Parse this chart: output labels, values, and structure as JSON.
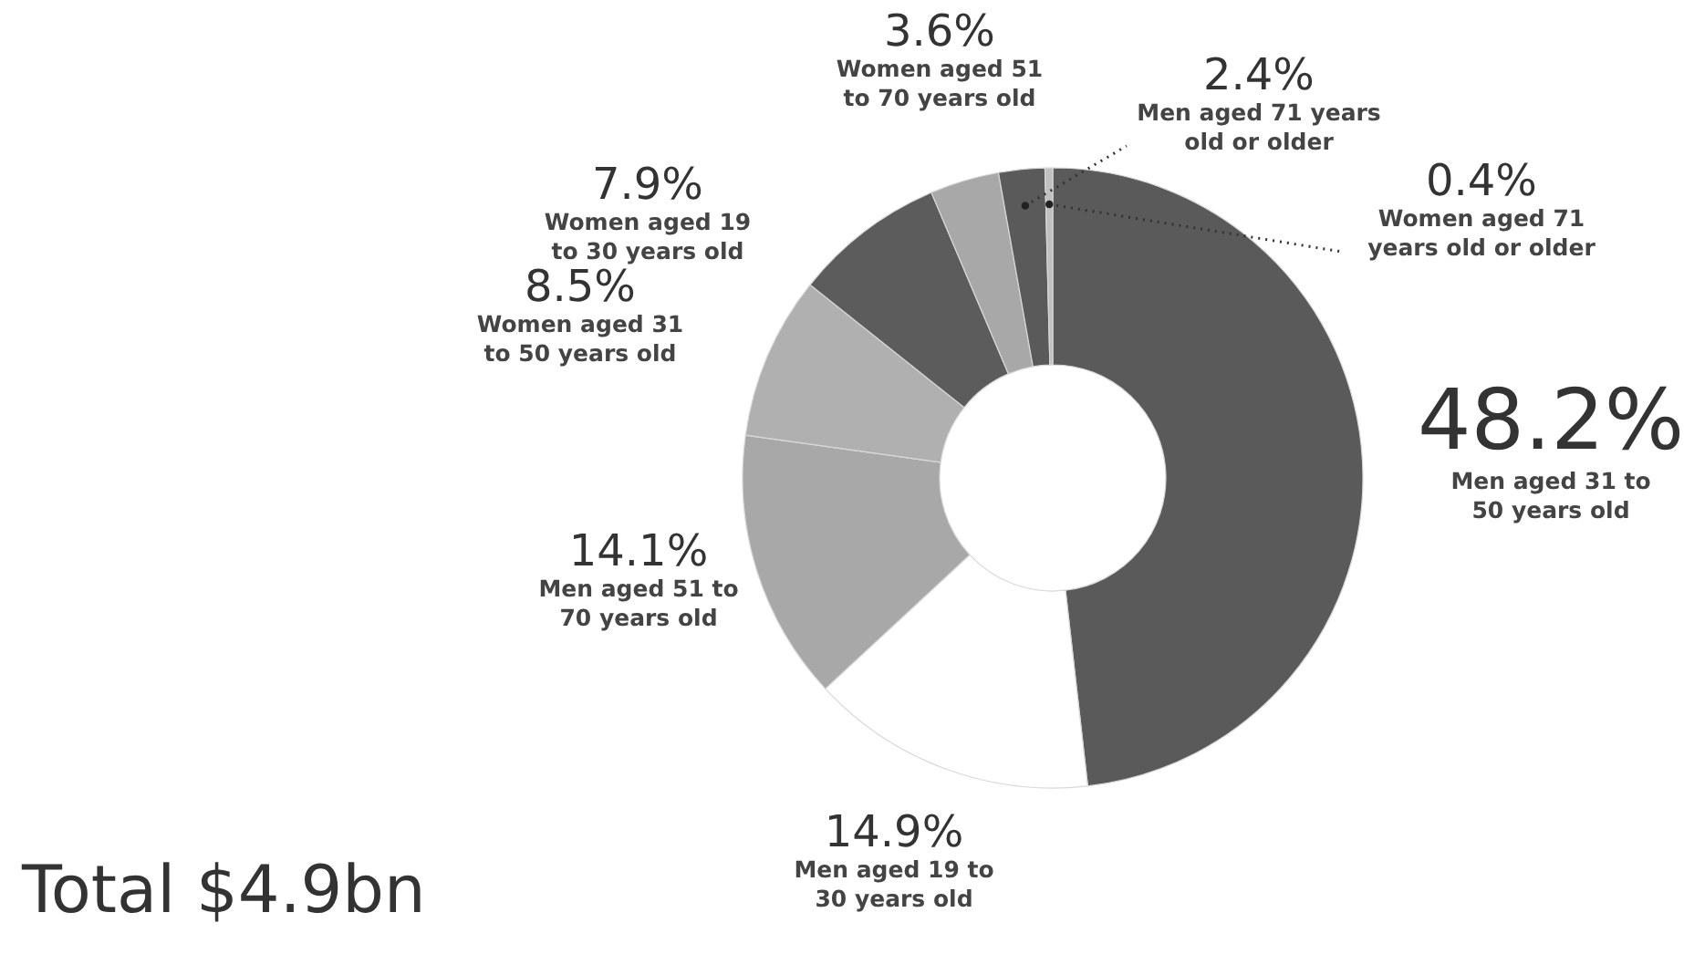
{
  "chart_data": {
    "type": "donut",
    "categories": [
      "Men aged 31 to 50 years old",
      "Men aged 19 to 30 years old",
      "Men aged 51 to 70 years old",
      "Women aged 31 to 50 years old",
      "Women aged 19 to 30 years old",
      "Women aged 51 to 70 years old",
      "Men aged 71 years old or older",
      "Women aged 71 years old or older"
    ],
    "values": [
      48.2,
      14.9,
      14.1,
      8.5,
      7.9,
      3.6,
      2.4,
      0.4
    ],
    "value_labels": [
      "48.2%",
      "14.9%",
      "14.1%",
      "8.5%",
      "7.9%",
      "3.6%",
      "2.4%",
      "0.4%"
    ],
    "colors": [
      "#5a5a5a",
      "#ffffff",
      "#a8a8a8",
      "#b0b0b0",
      "#5c5c5c",
      "#a8a8a8",
      "#5a5a5a",
      "#c0c0c0"
    ],
    "annotations": [
      "Total $4.9bn"
    ]
  }
}
